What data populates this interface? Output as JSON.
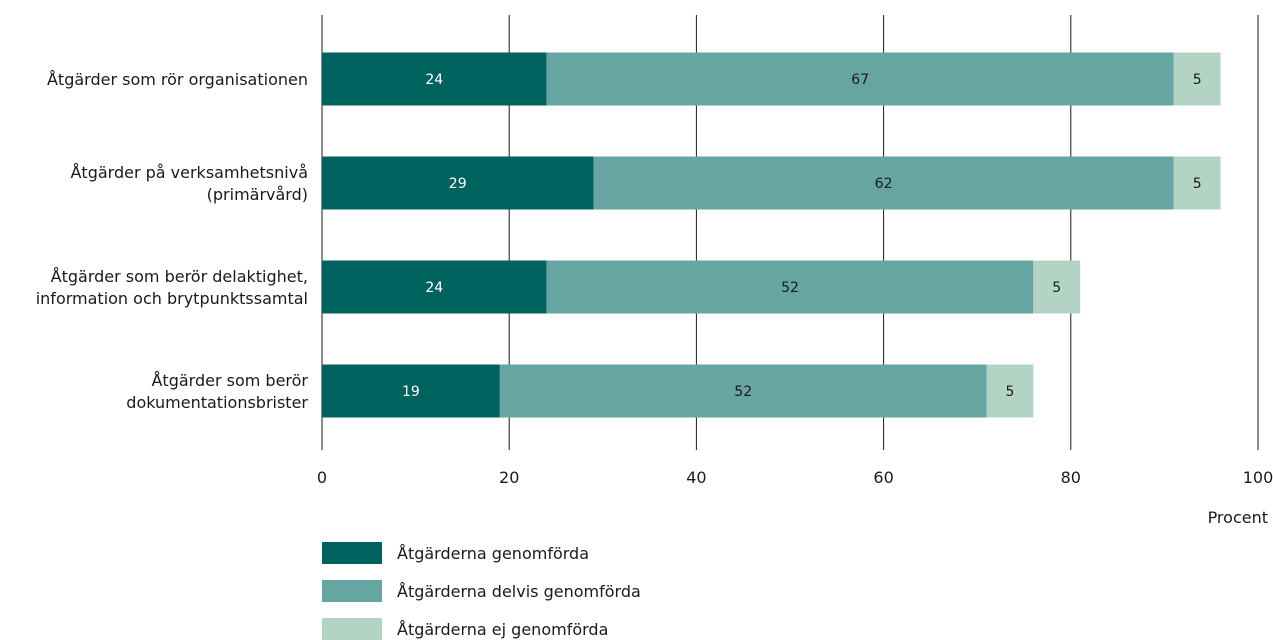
{
  "chart_data": {
    "type": "bar",
    "orientation": "horizontal",
    "stacked": true,
    "categories": [
      [
        "Åtgärder som rör organisationen"
      ],
      [
        "Åtgärder på verksamhetsnivå",
        "(primärvård)"
      ],
      [
        "Åtgärder som berör delaktighet,",
        "information och brytpunktssamtal"
      ],
      [
        "Åtgärder som berör",
        "dokumentationsbrister"
      ]
    ],
    "series": [
      {
        "name": "Åtgärderna genomförda",
        "values": [
          24,
          29,
          24,
          19
        ],
        "color": "#00625f",
        "label_color": "#ffffff"
      },
      {
        "name": "Åtgärderna delvis genomförda",
        "values": [
          67,
          62,
          52,
          52
        ],
        "color": "#67a5a3",
        "label_color": "#1a1a1a"
      },
      {
        "name": "Åtgärderna ej genomförda",
        "values": [
          5,
          5,
          5,
          5
        ],
        "color": "#b3d4c5",
        "label_color": "#1a1a1a"
      }
    ],
    "xlabel": "Procent",
    "xlim": [
      0,
      100
    ],
    "xticks": [
      0,
      20,
      40,
      60,
      80,
      100
    ],
    "grid": true,
    "legend_position": "bottom-left"
  }
}
